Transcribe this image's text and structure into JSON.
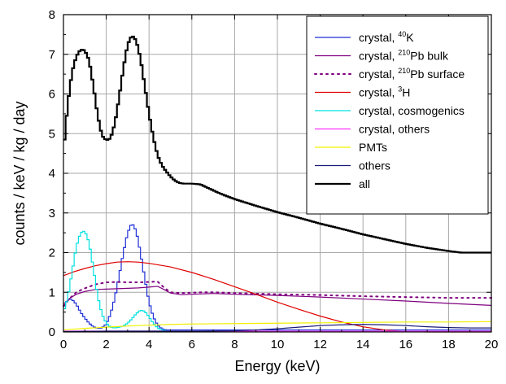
{
  "chart_data": {
    "type": "line",
    "title": "",
    "xlabel": "Energy (keV)",
    "ylabel": "counts / keV / kg / day",
    "xlim": [
      0,
      20
    ],
    "ylim": [
      0,
      8
    ],
    "x_ticks": [
      "0",
      "2",
      "4",
      "6",
      "8",
      "10",
      "12",
      "14",
      "16",
      "18",
      "20"
    ],
    "y_ticks": [
      "0",
      "1",
      "2",
      "3",
      "4",
      "5",
      "6",
      "7",
      "8"
    ],
    "grid": true,
    "legend_position": "top-right",
    "series": [
      {
        "name": "crystal, 40K",
        "label_parts": [
          "crystal, ",
          "40",
          "K"
        ],
        "color": "#1f2fd6",
        "dash": "solid",
        "step": true,
        "points": [
          [
            0,
            0.6
          ],
          [
            0.2,
            0.82
          ],
          [
            0.4,
            0.82
          ],
          [
            0.6,
            0.7
          ],
          [
            0.8,
            0.5
          ],
          [
            1.0,
            0.35
          ],
          [
            1.2,
            0.22
          ],
          [
            1.4,
            0.13
          ],
          [
            1.6,
            0.09
          ],
          [
            1.8,
            0.1
          ],
          [
            2.0,
            0.2
          ],
          [
            2.2,
            0.45
          ],
          [
            2.4,
            0.85
          ],
          [
            2.6,
            1.4
          ],
          [
            2.8,
            2.0
          ],
          [
            3.0,
            2.5
          ],
          [
            3.2,
            2.75
          ],
          [
            3.4,
            2.55
          ],
          [
            3.6,
            2.0
          ],
          [
            3.8,
            1.35
          ],
          [
            4.0,
            0.75
          ],
          [
            4.2,
            0.38
          ],
          [
            4.4,
            0.17
          ],
          [
            4.6,
            0.08
          ],
          [
            4.8,
            0.05
          ],
          [
            5.0,
            0.05
          ],
          [
            6,
            0.05
          ],
          [
            8,
            0.05
          ],
          [
            10,
            0.05
          ],
          [
            12,
            0.05
          ],
          [
            14,
            0.05
          ],
          [
            16,
            0.05
          ],
          [
            18,
            0.05
          ],
          [
            20,
            0.05
          ]
        ]
      },
      {
        "name": "crystal, 210Pb bulk",
        "label_parts": [
          "crystal, ",
          "210",
          "Pb bulk"
        ],
        "color": "#800080",
        "dash": "solid",
        "step": false,
        "points": [
          [
            0,
            0.7
          ],
          [
            0.3,
            0.85
          ],
          [
            0.6,
            0.95
          ],
          [
            1,
            1.02
          ],
          [
            1.5,
            1.07
          ],
          [
            2,
            1.08
          ],
          [
            2.5,
            1.09
          ],
          [
            3,
            1.1
          ],
          [
            3.5,
            1.11
          ],
          [
            4,
            1.13
          ],
          [
            4.4,
            1.15
          ],
          [
            4.7,
            1.07
          ],
          [
            5,
            0.98
          ],
          [
            5.5,
            0.94
          ],
          [
            6,
            0.95
          ],
          [
            6.5,
            0.96
          ],
          [
            7,
            0.97
          ],
          [
            8,
            0.95
          ],
          [
            10,
            0.92
          ],
          [
            12,
            0.88
          ],
          [
            14,
            0.83
          ],
          [
            16,
            0.78
          ],
          [
            18,
            0.72
          ],
          [
            20,
            0.67
          ]
        ]
      },
      {
        "name": "crystal, 210Pb surface",
        "label_parts": [
          "crystal, ",
          "210",
          "Pb surface"
        ],
        "color": "#800080",
        "dash": "dotted",
        "step": false,
        "points": [
          [
            0,
            0.65
          ],
          [
            0.3,
            0.85
          ],
          [
            0.6,
            1.0
          ],
          [
            1,
            1.1
          ],
          [
            1.5,
            1.2
          ],
          [
            2,
            1.25
          ],
          [
            2.5,
            1.26
          ],
          [
            3,
            1.25
          ],
          [
            3.5,
            1.25
          ],
          [
            4,
            1.26
          ],
          [
            4.4,
            1.27
          ],
          [
            4.7,
            1.12
          ],
          [
            5,
            1.0
          ],
          [
            5.5,
            0.98
          ],
          [
            6,
            0.99
          ],
          [
            6.5,
            1.0
          ],
          [
            7,
            1.0
          ],
          [
            8,
            0.98
          ],
          [
            10,
            0.95
          ],
          [
            12,
            0.93
          ],
          [
            14,
            0.9
          ],
          [
            16,
            0.88
          ],
          [
            18,
            0.86
          ],
          [
            20,
            0.86
          ]
        ]
      },
      {
        "name": "crystal, 3H",
        "label_parts": [
          "crystal, ",
          "3",
          "H"
        ],
        "color": "#e00000",
        "dash": "solid",
        "step": false,
        "points": [
          [
            0,
            1.42
          ],
          [
            0.5,
            1.52
          ],
          [
            1,
            1.6
          ],
          [
            1.5,
            1.67
          ],
          [
            2,
            1.72
          ],
          [
            2.5,
            1.76
          ],
          [
            3,
            1.77
          ],
          [
            3.5,
            1.76
          ],
          [
            4,
            1.73
          ],
          [
            5,
            1.64
          ],
          [
            6,
            1.5
          ],
          [
            7,
            1.33
          ],
          [
            8,
            1.14
          ],
          [
            9,
            0.95
          ],
          [
            10,
            0.75
          ],
          [
            11,
            0.57
          ],
          [
            12,
            0.4
          ],
          [
            13,
            0.25
          ],
          [
            14,
            0.13
          ],
          [
            15,
            0.05
          ],
          [
            16,
            0.01
          ],
          [
            17,
            0.0
          ],
          [
            20,
            0.0
          ]
        ]
      },
      {
        "name": "crystal, cosmogenics",
        "label_parts": [
          "crystal, cosmogenics"
        ],
        "color": "#00e0e0",
        "dash": "solid",
        "step": true,
        "points": [
          [
            0,
            0.5
          ],
          [
            0.2,
            0.85
          ],
          [
            0.4,
            1.5
          ],
          [
            0.6,
            2.15
          ],
          [
            0.8,
            2.5
          ],
          [
            1.0,
            2.55
          ],
          [
            1.2,
            2.25
          ],
          [
            1.4,
            1.6
          ],
          [
            1.6,
            0.9
          ],
          [
            1.8,
            0.45
          ],
          [
            2.0,
            0.22
          ],
          [
            2.2,
            0.12
          ],
          [
            2.4,
            0.1
          ],
          [
            2.6,
            0.12
          ],
          [
            2.8,
            0.15
          ],
          [
            3.0,
            0.22
          ],
          [
            3.2,
            0.33
          ],
          [
            3.4,
            0.46
          ],
          [
            3.6,
            0.55
          ],
          [
            3.8,
            0.52
          ],
          [
            4.0,
            0.38
          ],
          [
            4.2,
            0.22
          ],
          [
            4.4,
            0.1
          ],
          [
            4.6,
            0.05
          ],
          [
            4.8,
            0.03
          ],
          [
            5.0,
            0.02
          ],
          [
            6,
            0.02
          ],
          [
            20,
            0.02
          ]
        ]
      },
      {
        "name": "crystal, others",
        "label_parts": [
          "crystal, others"
        ],
        "color": "#ff33ff",
        "dash": "solid",
        "step": false,
        "points": [
          [
            0,
            0.02
          ],
          [
            2,
            0.02
          ],
          [
            4,
            0.02
          ],
          [
            6,
            0.02
          ],
          [
            8,
            0.02
          ],
          [
            10,
            0.02
          ],
          [
            12,
            0.02
          ],
          [
            14,
            0.02
          ],
          [
            16,
            0.02
          ],
          [
            18,
            0.02
          ],
          [
            20,
            0.02
          ]
        ]
      },
      {
        "name": "PMTs",
        "label_parts": [
          "PMTs"
        ],
        "color": "#f0f000",
        "dash": "solid",
        "step": false,
        "points": [
          [
            0,
            0.05
          ],
          [
            1,
            0.09
          ],
          [
            2,
            0.12
          ],
          [
            3,
            0.15
          ],
          [
            4,
            0.17
          ],
          [
            5,
            0.19
          ],
          [
            6,
            0.2
          ],
          [
            8,
            0.21
          ],
          [
            10,
            0.22
          ],
          [
            12,
            0.23
          ],
          [
            14,
            0.24
          ],
          [
            16,
            0.25
          ],
          [
            18,
            0.25
          ],
          [
            20,
            0.26
          ]
        ]
      },
      {
        "name": "others",
        "label_parts": [
          "others"
        ],
        "color": "#1a1a7a",
        "dash": "solid",
        "step": false,
        "points": [
          [
            0,
            0.01
          ],
          [
            2,
            0.02
          ],
          [
            4,
            0.02
          ],
          [
            6,
            0.02
          ],
          [
            8,
            0.03
          ],
          [
            9,
            0.05
          ],
          [
            10,
            0.08
          ],
          [
            11,
            0.12
          ],
          [
            12,
            0.16
          ],
          [
            13,
            0.18
          ],
          [
            14,
            0.19
          ],
          [
            15,
            0.18
          ],
          [
            16,
            0.16
          ],
          [
            17,
            0.13
          ],
          [
            18,
            0.11
          ],
          [
            19,
            0.1
          ],
          [
            20,
            0.1
          ]
        ]
      },
      {
        "name": "all",
        "label_parts": [
          "all"
        ],
        "color": "#000000",
        "dash": "solid",
        "step": true,
        "width": 2.2,
        "points": [
          [
            0,
            4.55
          ],
          [
            0.2,
            5.75
          ],
          [
            0.4,
            6.55
          ],
          [
            0.6,
            6.95
          ],
          [
            0.8,
            7.12
          ],
          [
            1.0,
            7.1
          ],
          [
            1.2,
            6.85
          ],
          [
            1.4,
            6.2
          ],
          [
            1.6,
            5.45
          ],
          [
            1.8,
            4.95
          ],
          [
            2.0,
            4.83
          ],
          [
            2.2,
            4.88
          ],
          [
            2.4,
            5.25
          ],
          [
            2.6,
            5.9
          ],
          [
            2.8,
            6.65
          ],
          [
            3.0,
            7.25
          ],
          [
            3.2,
            7.48
          ],
          [
            3.4,
            7.35
          ],
          [
            3.6,
            6.9
          ],
          [
            3.8,
            6.2
          ],
          [
            4.0,
            5.5
          ],
          [
            4.2,
            4.9
          ],
          [
            4.4,
            4.45
          ],
          [
            4.6,
            4.2
          ],
          [
            4.8,
            4.05
          ],
          [
            5.0,
            3.92
          ],
          [
            5.2,
            3.82
          ],
          [
            5.4,
            3.76
          ],
          [
            5.6,
            3.74
          ],
          [
            6.0,
            3.74
          ],
          [
            6.4,
            3.72
          ],
          [
            6.8,
            3.62
          ],
          [
            7.2,
            3.52
          ],
          [
            7.6,
            3.43
          ],
          [
            8,
            3.35
          ],
          [
            9,
            3.18
          ],
          [
            10,
            3.02
          ],
          [
            11,
            2.88
          ],
          [
            12,
            2.73
          ],
          [
            13,
            2.6
          ],
          [
            14,
            2.46
          ],
          [
            15,
            2.34
          ],
          [
            16,
            2.22
          ],
          [
            17,
            2.12
          ],
          [
            18,
            2.04
          ],
          [
            18.6,
            2.0
          ],
          [
            19,
            2.0
          ],
          [
            20,
            2.0
          ]
        ]
      }
    ]
  }
}
